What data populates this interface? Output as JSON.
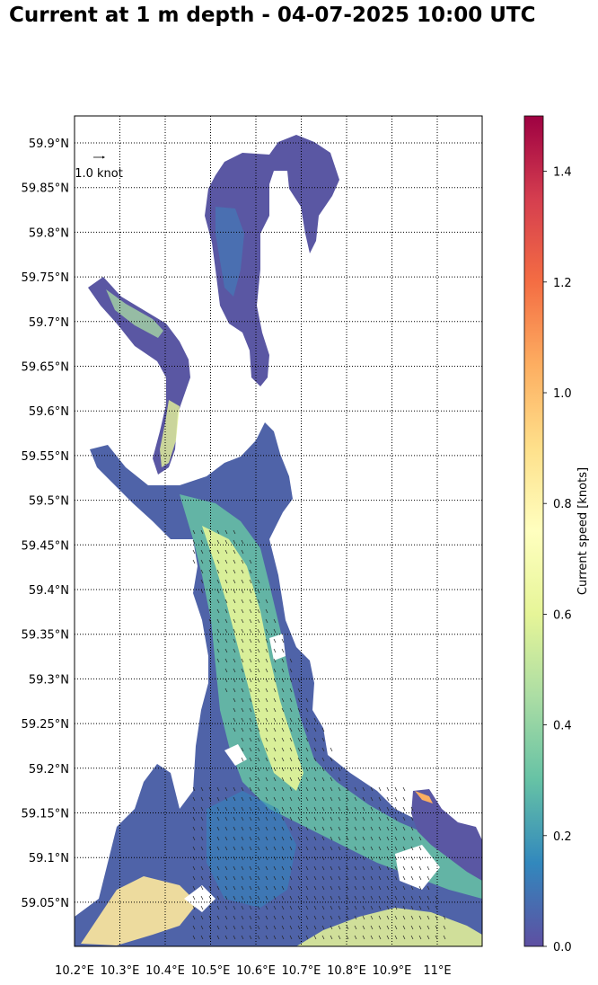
{
  "title": "Current at 1 m depth - 04-07-2025 10:00 UTC",
  "map": {
    "lat_ticks": [
      "59.9°N",
      "59.85°N",
      "59.8°N",
      "59.75°N",
      "59.7°N",
      "59.65°N",
      "59.6°N",
      "59.55°N",
      "59.5°N",
      "59.45°N",
      "59.4°N",
      "59.35°N",
      "59.3°N",
      "59.25°N",
      "59.2°N",
      "59.15°N",
      "59.1°N",
      "59.05°N"
    ],
    "lon_ticks": [
      "10.2°E",
      "10.3°E",
      "10.4°E",
      "10.5°E",
      "10.6°E",
      "10.7°E",
      "10.8°E",
      "10.9°E",
      "11°E"
    ],
    "lat_range": [
      59.0,
      59.93
    ],
    "lon_range": [
      10.2,
      11.1
    ],
    "reference_arrow_label": "1.0 knot",
    "gridlines": "dotted"
  },
  "colorbar": {
    "label": "Current speed [knots]",
    "ticks": [
      "0.0",
      "0.2",
      "0.4",
      "0.6",
      "0.8",
      "1.0",
      "1.2",
      "1.4"
    ],
    "range": [
      0,
      1.5
    ],
    "colormap": "Spectral_r",
    "colors": [
      "#5e4fa2",
      "#3288bd",
      "#66c2a5",
      "#abdda4",
      "#e6f598",
      "#ffffbf",
      "#fee08b",
      "#fdae61",
      "#f46d43",
      "#d53e4f",
      "#9e0142"
    ]
  }
}
